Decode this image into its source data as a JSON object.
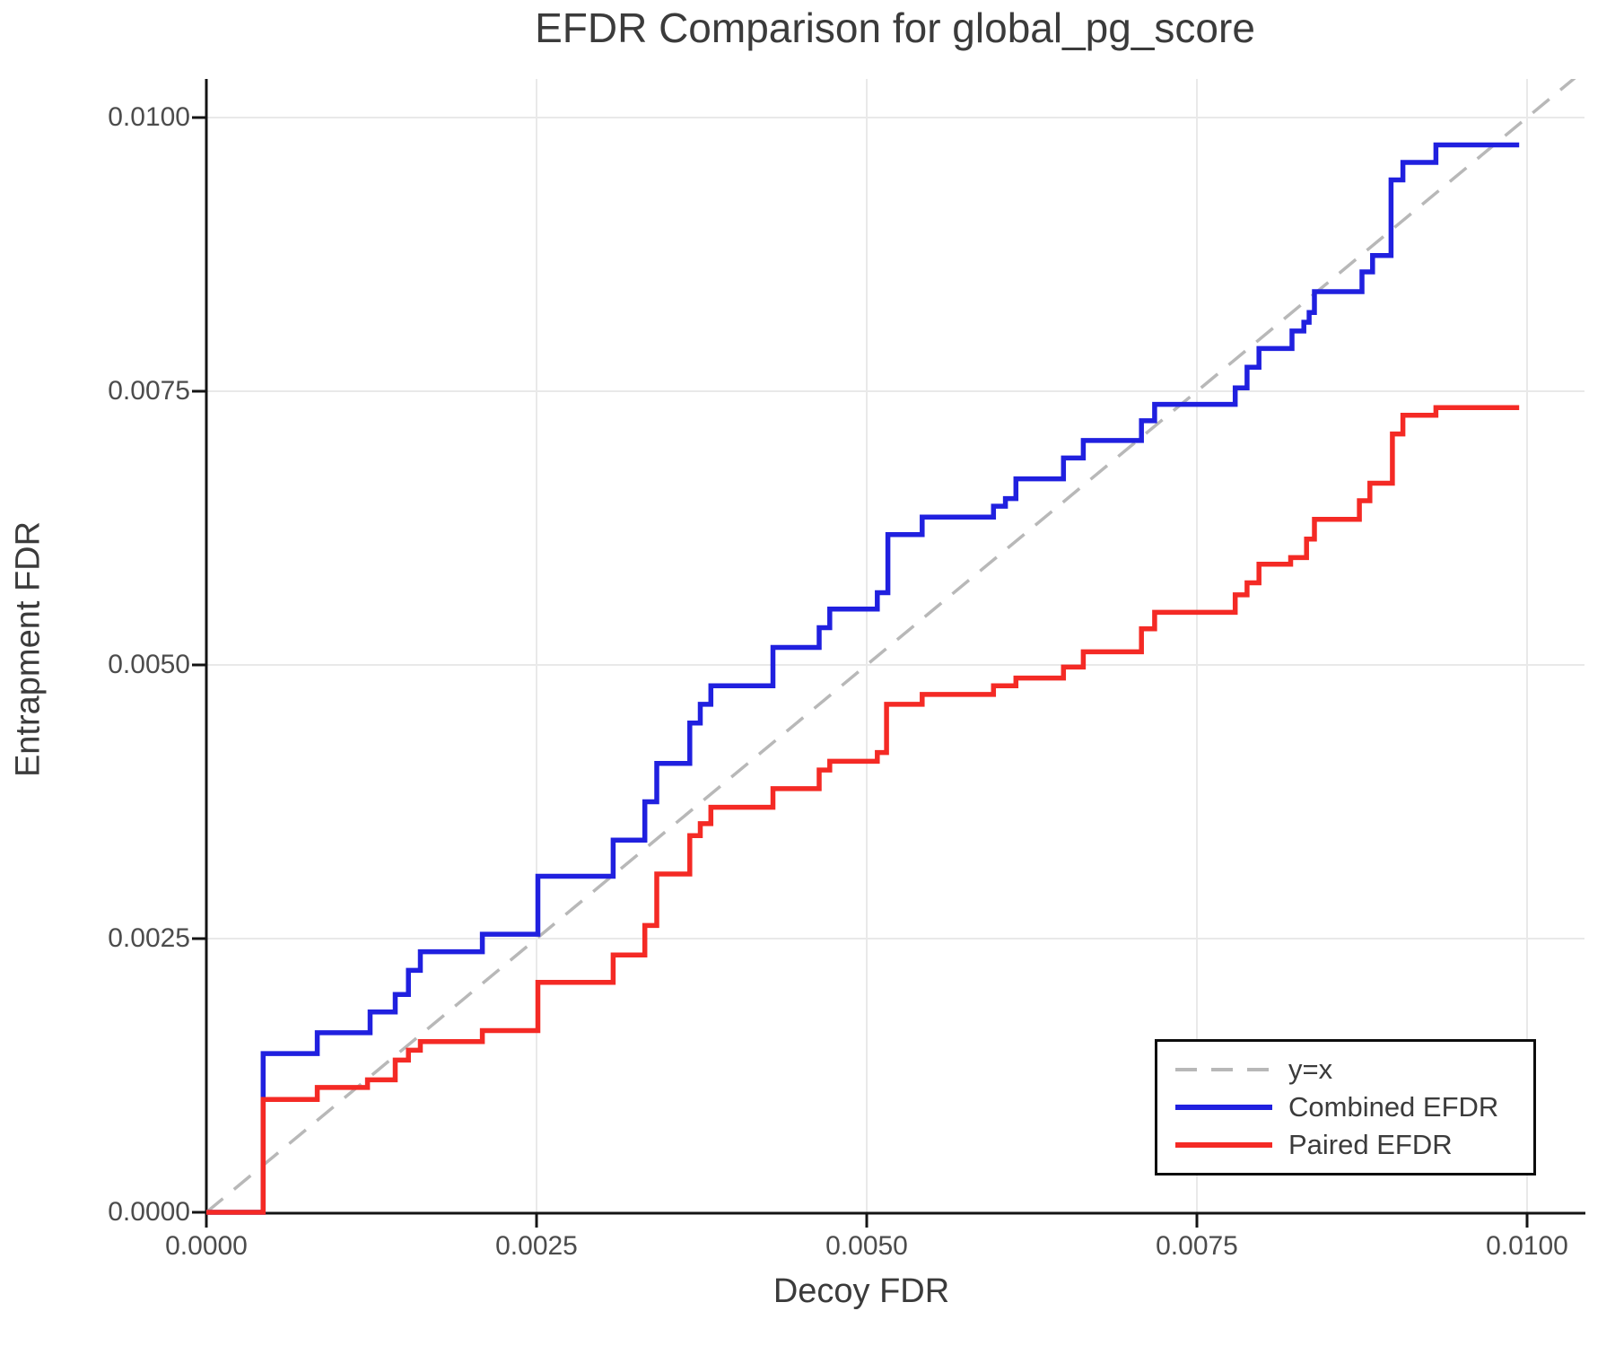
{
  "title": "EFDR Comparison for global_pg_score",
  "axes": {
    "xlabel": "Decoy FDR",
    "ylabel": "Entrapment FDR",
    "x_tick_labels": [
      "0.0000",
      "0.0025",
      "0.0050",
      "0.0075",
      "0.0100"
    ],
    "y_tick_labels": [
      "0.0000",
      "0.0025",
      "0.0050",
      "0.0075",
      "0.0100"
    ],
    "x_ticks": [
      0.0,
      0.0025,
      0.005,
      0.0075,
      0.01
    ],
    "y_ticks": [
      0.0,
      0.0025,
      0.005,
      0.0075,
      0.01
    ],
    "xlim": [
      0.0,
      0.010434
    ],
    "ylim": [
      0.0,
      0.010352
    ],
    "grid": true
  },
  "colors": {
    "grid": "#e9e9e9",
    "spine": "#141414",
    "identity": "#b8b8b8",
    "combined": "#2020df",
    "paired": "#f42a25",
    "text": "#3b3b3b",
    "tick_text": "#4c4c4c"
  },
  "legend_position": "bottom-right",
  "chart_data": {
    "type": "line",
    "title": "EFDR Comparison for global_pg_score",
    "xlabel": "Decoy FDR",
    "ylabel": "Entrapment FDR",
    "xlim": [
      0.0,
      0.010434
    ],
    "ylim": [
      0.0,
      0.010352
    ],
    "grid": true,
    "legend_position": "bottom-right",
    "series": [
      {
        "name": "y=x",
        "color": "#b8b8b8",
        "style": "dashed",
        "identity": true
      },
      {
        "name": "Combined EFDR",
        "color": "#2020df",
        "style": "step",
        "x_end": 0.00994,
        "points": [
          [
            0.0,
            0.0
          ],
          [
            0.00043,
            0.00145
          ],
          [
            0.00084,
            0.00164
          ],
          [
            0.00124,
            0.00183
          ],
          [
            0.00143,
            0.00199
          ],
          [
            0.00153,
            0.00221
          ],
          [
            0.00162,
            0.00238
          ],
          [
            0.00209,
            0.00254
          ],
          [
            0.00251,
            0.00307
          ],
          [
            0.00308,
            0.0034
          ],
          [
            0.00332,
            0.00375
          ],
          [
            0.00341,
            0.0041
          ],
          [
            0.00366,
            0.00447
          ],
          [
            0.00374,
            0.00464
          ],
          [
            0.00382,
            0.00481
          ],
          [
            0.00429,
            0.00516
          ],
          [
            0.00464,
            0.00534
          ],
          [
            0.00472,
            0.00551
          ],
          [
            0.00508,
            0.00566
          ],
          [
            0.00516,
            0.00619
          ],
          [
            0.00542,
            0.00635
          ],
          [
            0.00596,
            0.00645
          ],
          [
            0.00605,
            0.00652
          ],
          [
            0.00613,
            0.0067
          ],
          [
            0.00649,
            0.00689
          ],
          [
            0.00664,
            0.00705
          ],
          [
            0.00708,
            0.00723
          ],
          [
            0.00718,
            0.00738
          ],
          [
            0.00779,
            0.00753
          ],
          [
            0.00788,
            0.00772
          ],
          [
            0.00797,
            0.00789
          ],
          [
            0.00822,
            0.00805
          ],
          [
            0.00831,
            0.00813
          ],
          [
            0.00835,
            0.00822
          ],
          [
            0.00839,
            0.00841
          ],
          [
            0.00875,
            0.00859
          ],
          [
            0.00883,
            0.00874
          ],
          [
            0.00897,
            0.00943
          ],
          [
            0.00906,
            0.00959
          ],
          [
            0.00931,
            0.00975
          ]
        ]
      },
      {
        "name": "Paired EFDR",
        "color": "#f42a25",
        "style": "step",
        "x_end": 0.00994,
        "points": [
          [
            0.0,
            0.0
          ],
          [
            0.00043,
            0.00103
          ],
          [
            0.00084,
            0.00114
          ],
          [
            0.00122,
            0.00121
          ],
          [
            0.00143,
            0.00139
          ],
          [
            0.00153,
            0.00148
          ],
          [
            0.00162,
            0.00156
          ],
          [
            0.00209,
            0.00166
          ],
          [
            0.00251,
            0.0021
          ],
          [
            0.00308,
            0.00235
          ],
          [
            0.00332,
            0.00262
          ],
          [
            0.00341,
            0.00309
          ],
          [
            0.00366,
            0.00344
          ],
          [
            0.00374,
            0.00355
          ],
          [
            0.00382,
            0.0037
          ],
          [
            0.00429,
            0.00387
          ],
          [
            0.00464,
            0.00404
          ],
          [
            0.00472,
            0.00412
          ],
          [
            0.00508,
            0.0042
          ],
          [
            0.00515,
            0.00464
          ],
          [
            0.00542,
            0.00473
          ],
          [
            0.00596,
            0.00481
          ],
          [
            0.00613,
            0.00488
          ],
          [
            0.00649,
            0.00498
          ],
          [
            0.00664,
            0.00512
          ],
          [
            0.00708,
            0.00533
          ],
          [
            0.00718,
            0.00548
          ],
          [
            0.00779,
            0.00564
          ],
          [
            0.00788,
            0.00575
          ],
          [
            0.00797,
            0.00592
          ],
          [
            0.00821,
            0.00598
          ],
          [
            0.00833,
            0.00615
          ],
          [
            0.00839,
            0.00633
          ],
          [
            0.00873,
            0.0065
          ],
          [
            0.00881,
            0.00666
          ],
          [
            0.00898,
            0.00711
          ],
          [
            0.00906,
            0.00728
          ],
          [
            0.00931,
            0.00735
          ]
        ]
      }
    ]
  }
}
